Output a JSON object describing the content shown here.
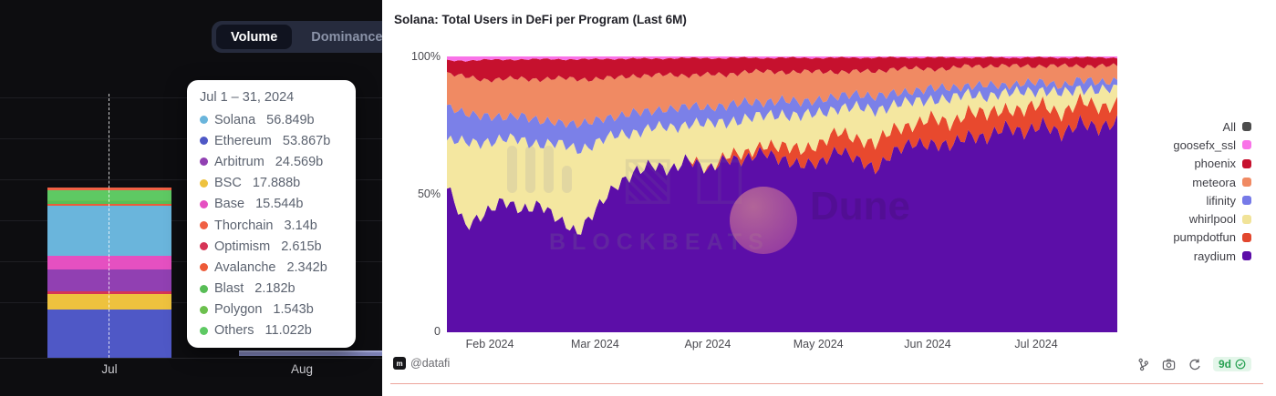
{
  "left_panel": {
    "tabs": [
      {
        "label": "Volume",
        "active": true
      },
      {
        "label": "Dominance",
        "active": false
      }
    ],
    "tooltip_title": "Jul 1 – 31, 2024",
    "x_ticks": [
      "Jul",
      "Aug"
    ],
    "aug_bar_color": "#7c80b4"
  },
  "right_panel": {
    "title": "Solana: Total Users in DeFi per Program (Last 6M)",
    "y_ticks": [
      "100%",
      "50%",
      "0"
    ],
    "x_ticks": [
      "Feb 2024",
      "Mar 2024",
      "Apr 2024",
      "May 2024",
      "Jun 2024",
      "Jul 2024"
    ],
    "legend": [
      {
        "label": "All",
        "color": "#4d4d4d"
      },
      {
        "label": "goosefx_ssl",
        "color": "#f973e8"
      },
      {
        "label": "phoenix",
        "color": "#c6112e"
      },
      {
        "label": "meteora",
        "color": "#f08a63"
      },
      {
        "label": "lifinity",
        "color": "#767ae8"
      },
      {
        "label": "whirlpool",
        "color": "#f1e398"
      },
      {
        "label": "pumpdotfun",
        "color": "#e2472e"
      },
      {
        "label": "raydium",
        "color": "#5c0ea8"
      }
    ],
    "watermark_blockbeats": "BLOCKBEATS",
    "watermark_dune": "Dune",
    "footer": {
      "handle": "@datafi",
      "badge": "9d"
    }
  },
  "chart_data": [
    {
      "type": "bar",
      "stacked": true,
      "title": "DeFi volume by chain (tab: Volume)",
      "unit": "b (billions USD)",
      "categories": [
        "Jul",
        "Aug"
      ],
      "tooltip_period": "Jul 1 – 31, 2024",
      "series": [
        {
          "name": "Solana",
          "value": 56.849,
          "color": "#6ab5dc"
        },
        {
          "name": "Ethereum",
          "value": 53.867,
          "color": "#4f58c6"
        },
        {
          "name": "Arbitrum",
          "value": 24.569,
          "color": "#9140b2"
        },
        {
          "name": "BSC",
          "value": 17.888,
          "color": "#eec23e"
        },
        {
          "name": "Base",
          "value": 15.544,
          "color": "#e550c1"
        },
        {
          "name": "Thorchain",
          "value": 3.14,
          "color": "#f06044"
        },
        {
          "name": "Optimism",
          "value": 2.615,
          "color": "#d63456"
        },
        {
          "name": "Avalanche",
          "value": 2.342,
          "color": "#ed5a38"
        },
        {
          "name": "Blast",
          "value": 2.182,
          "color": "#58bd56"
        },
        {
          "name": "Polygon",
          "value": 1.543,
          "color": "#6cc04e"
        },
        {
          "name": "Others",
          "value": 11.022,
          "color": "#5ec963"
        }
      ],
      "stack_order": [
        "Ethereum",
        "BSC",
        "Optimism",
        "Arbitrum",
        "Base",
        "Solana",
        "Avalanche",
        "Blast",
        "Polygon",
        "Others",
        "Thorchain"
      ]
    },
    {
      "type": "area",
      "stacked_percent": true,
      "title": "Solana: Total Users in DeFi per Program (Last 6M)",
      "x_start": "Feb 2024",
      "x_end": "Jul 2024",
      "ylim": [
        "0",
        "100%"
      ],
      "x_days": [
        0,
        5,
        10,
        15,
        20,
        25,
        30,
        35,
        40,
        45,
        50,
        55,
        60,
        65,
        70,
        75,
        80,
        85,
        90,
        95,
        100,
        105,
        110,
        115,
        120,
        125,
        130,
        135,
        140,
        145,
        150,
        155,
        160,
        165,
        170,
        175,
        180,
        185
      ],
      "series": [
        {
          "name": "raydium",
          "color": "#5c0ea8",
          "values": [
            52,
            38,
            43,
            47,
            44,
            46,
            40,
            36,
            44,
            52,
            57,
            60,
            58,
            62,
            58,
            63,
            62,
            65,
            62,
            60,
            61,
            66,
            62,
            59,
            65,
            68,
            68,
            67,
            71,
            70,
            74,
            72,
            75,
            71,
            76,
            73,
            76,
            75
          ]
        },
        {
          "name": "pumpdotfun",
          "color": "#e8492e",
          "values": [
            0,
            0,
            0,
            0,
            0,
            0,
            0,
            0,
            0,
            0,
            0,
            0,
            0,
            0,
            0.5,
            1,
            2,
            3,
            4,
            6,
            7,
            6,
            8,
            9,
            8,
            7,
            9,
            8,
            9,
            8,
            7,
            8,
            7,
            8,
            7,
            8,
            7,
            7
          ]
        },
        {
          "name": "whirlpool",
          "color": "#f4e7a0",
          "values": [
            16,
            30,
            26,
            22,
            25,
            22,
            27,
            30,
            24,
            18,
            15,
            13,
            15,
            13,
            16,
            12,
            13,
            10,
            12,
            12,
            11,
            9,
            11,
            12,
            9,
            8,
            7,
            9,
            6,
            7,
            5,
            7,
            5,
            7,
            5,
            6,
            5,
            6
          ]
        },
        {
          "name": "lifinity",
          "color": "#7b80e8",
          "values": [
            12,
            11,
            9,
            8,
            9,
            8,
            8,
            9,
            8,
            7,
            7,
            6,
            7,
            6,
            6,
            6,
            6,
            5,
            5,
            5,
            5,
            4,
            5,
            5,
            4,
            4,
            4,
            4,
            3,
            4,
            3,
            3,
            3,
            3,
            3,
            3,
            3,
            3
          ]
        },
        {
          "name": "meteora",
          "color": "#f08a63",
          "values": [
            12,
            13,
            13,
            14,
            13,
            15,
            16,
            16,
            15,
            14,
            13,
            13,
            12,
            11,
            12,
            11,
            11,
            11,
            10,
            11,
            10,
            9,
            8,
            9,
            9,
            8,
            7,
            7,
            7,
            7,
            7,
            6,
            6,
            7,
            5,
            6,
            5,
            5
          ]
        },
        {
          "name": "phoenix",
          "color": "#c6112e",
          "values": [
            4.5,
            6,
            7,
            7,
            7,
            7,
            7,
            7,
            7,
            7,
            6,
            6,
            6,
            6,
            6,
            6,
            5,
            5,
            5,
            5,
            5,
            5,
            5,
            5,
            4,
            4,
            4,
            4,
            3,
            3,
            3,
            3,
            3,
            3,
            3,
            3,
            3,
            3
          ]
        },
        {
          "name": "goosefx_ssl",
          "color": "#f973e8",
          "values": [
            1.5,
            1.5,
            1.2,
            1.2,
            1,
            1,
            1,
            1,
            1,
            0.8,
            0.8,
            0.8,
            0.6,
            0.6,
            0.6,
            0.6,
            0.5,
            0.5,
            0.5,
            0.5,
            0.5,
            0.5,
            0.4,
            0.4,
            0.4,
            0.4,
            0.4,
            0.4,
            0.4,
            0.4,
            0.4,
            0.4,
            0.4,
            0.4,
            0.4,
            0.4,
            0.4,
            0.4
          ]
        }
      ]
    }
  ]
}
